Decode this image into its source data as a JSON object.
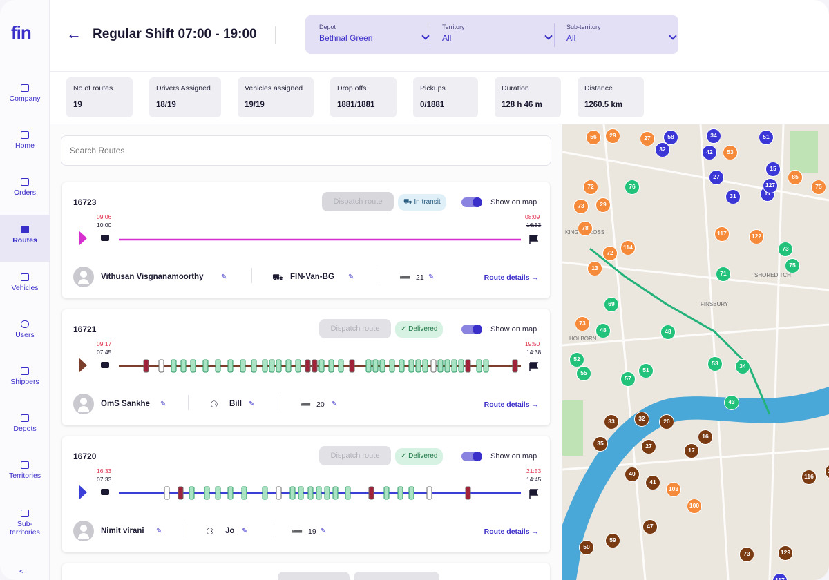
{
  "app": {
    "logo": "fin"
  },
  "sidebar": {
    "items": [
      {
        "label": "Company"
      },
      {
        "label": "Home"
      },
      {
        "label": "Orders"
      },
      {
        "label": "Routes",
        "active": true
      },
      {
        "label": "Vehicles"
      },
      {
        "label": "Users"
      },
      {
        "label": "Shippers"
      },
      {
        "label": "Depots"
      },
      {
        "label": "Territories"
      },
      {
        "label": "Sub-territories"
      }
    ]
  },
  "header": {
    "title": "Regular Shift 07:00 - 19:00",
    "filters": [
      {
        "label": "Depot",
        "value": "Bethnal Green"
      },
      {
        "label": "Territory",
        "value": "All"
      },
      {
        "label": "Sub-territory",
        "value": "All"
      }
    ]
  },
  "stats": [
    {
      "label": "No of routes",
      "value": "19"
    },
    {
      "label": "Drivers Assigned",
      "value": "18/19"
    },
    {
      "label": "Vehicles assigned",
      "value": "19/19"
    },
    {
      "label": "Drop offs",
      "value": "1881/1881"
    },
    {
      "label": "Pickups",
      "value": "0/1881"
    },
    {
      "label": "Duration",
      "value": "128 h 46 m"
    },
    {
      "label": "Distance",
      "value": "1260.5 km"
    }
  ],
  "search": {
    "placeholder": "Search Routes"
  },
  "common": {
    "dispatch_label": "Dispatch route",
    "show_on_map_label": "Show on map",
    "route_details_label": "Route details →"
  },
  "routes": [
    {
      "id": "16723",
      "status": "In transit",
      "status_kind": "transit",
      "start_planned": "09:06",
      "start_actual": "10:00",
      "end_planned": "08:09",
      "end_actual": "16:53",
      "driver": "Vithusan Visgnanamoorthy",
      "vehicle": "FIN-Van-BG",
      "stops": "21",
      "color": "#d62fd0",
      "show_on_map": true
    },
    {
      "id": "16721",
      "status": "Delivered",
      "status_kind": "delivered",
      "start_planned": "09:17",
      "start_actual": "07:45",
      "end_planned": "19:50",
      "end_actual": "14:38",
      "driver": "OmS Sankhe",
      "vehicle": "Bill",
      "stops": "20",
      "color": "#7a3e2a",
      "show_on_map": true
    },
    {
      "id": "16720",
      "status": "Delivered",
      "status_kind": "delivered",
      "start_planned": "16:33",
      "start_actual": "07:33",
      "end_planned": "21:53",
      "end_actual": "14:45",
      "driver": "Nimit virani",
      "vehicle": "Jo",
      "stops": "19",
      "color": "#3b3fd6",
      "show_on_map": true
    }
  ],
  "colors": {
    "accent": "#3b2fc9",
    "orange_pin": "#f58a3a",
    "blue_pin": "#3b36d6",
    "green_pin": "#22c27a",
    "brown_pin": "#7a3a12"
  },
  "map": {
    "labels": [
      "KING'S CROSS",
      "SHOREDITCH",
      "FINSBURY",
      "HOLBORN"
    ],
    "pins": [
      {
        "n": "56",
        "c": "orange"
      },
      {
        "n": "29",
        "c": "orange"
      },
      {
        "n": "27",
        "c": "orange"
      },
      {
        "n": "58",
        "c": "blue"
      },
      {
        "n": "34",
        "c": "blue"
      },
      {
        "n": "51",
        "c": "blue"
      },
      {
        "n": "42",
        "c": "blue"
      },
      {
        "n": "53",
        "c": "orange"
      },
      {
        "n": "32",
        "c": "blue"
      },
      {
        "n": "27",
        "c": "blue"
      },
      {
        "n": "31",
        "c": "blue"
      },
      {
        "n": "11",
        "c": "blue"
      },
      {
        "n": "15",
        "c": "blue"
      },
      {
        "n": "127",
        "c": "blue"
      },
      {
        "n": "85",
        "c": "orange"
      },
      {
        "n": "75",
        "c": "orange"
      },
      {
        "n": "72",
        "c": "orange"
      },
      {
        "n": "73",
        "c": "orange"
      },
      {
        "n": "29",
        "c": "orange"
      },
      {
        "n": "78",
        "c": "orange"
      },
      {
        "n": "76",
        "c": "green"
      },
      {
        "n": "72",
        "c": "orange"
      },
      {
        "n": "114",
        "c": "orange"
      },
      {
        "n": "117",
        "c": "orange"
      },
      {
        "n": "122",
        "c": "orange"
      },
      {
        "n": "73",
        "c": "green"
      },
      {
        "n": "75",
        "c": "green"
      },
      {
        "n": "13",
        "c": "orange"
      },
      {
        "n": "71",
        "c": "green"
      },
      {
        "n": "69",
        "c": "green"
      },
      {
        "n": "73",
        "c": "orange"
      },
      {
        "n": "52",
        "c": "green"
      },
      {
        "n": "48",
        "c": "green"
      },
      {
        "n": "48",
        "c": "green"
      },
      {
        "n": "57",
        "c": "green"
      },
      {
        "n": "55",
        "c": "green"
      },
      {
        "n": "51",
        "c": "green"
      },
      {
        "n": "53",
        "c": "green"
      },
      {
        "n": "43",
        "c": "green"
      },
      {
        "n": "34",
        "c": "green"
      },
      {
        "n": "33",
        "c": "brown"
      },
      {
        "n": "32",
        "c": "brown"
      },
      {
        "n": "20",
        "c": "brown"
      },
      {
        "n": "35",
        "c": "brown"
      },
      {
        "n": "27",
        "c": "brown"
      },
      {
        "n": "16",
        "c": "brown"
      },
      {
        "n": "17",
        "c": "brown"
      },
      {
        "n": "40",
        "c": "brown"
      },
      {
        "n": "41",
        "c": "brown"
      },
      {
        "n": "116",
        "c": "brown"
      },
      {
        "n": "105",
        "c": "brown"
      },
      {
        "n": "103",
        "c": "orange"
      },
      {
        "n": "100",
        "c": "orange"
      },
      {
        "n": "59",
        "c": "brown"
      },
      {
        "n": "47",
        "c": "brown"
      },
      {
        "n": "73",
        "c": "brown"
      },
      {
        "n": "50",
        "c": "brown"
      },
      {
        "n": "117",
        "c": "blue"
      },
      {
        "n": "129",
        "c": "brown"
      }
    ]
  }
}
